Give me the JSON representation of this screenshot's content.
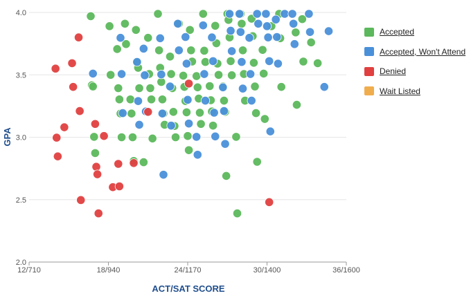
{
  "chart_data": {
    "type": "scatter",
    "xlabel": "ACT/SAT SCORE",
    "ylabel": "GPA",
    "x_ticks": [
      {
        "value": 12,
        "label": "12/710"
      },
      {
        "value": 18,
        "label": "18/940"
      },
      {
        "value": 24,
        "label": "24/1170"
      },
      {
        "value": 30,
        "label": "30/1400"
      },
      {
        "value": 36,
        "label": "36/1600"
      }
    ],
    "y_ticks": [
      "2.0",
      "2.5",
      "3.0",
      "3.5",
      "4.0"
    ],
    "xlim": [
      12,
      36
    ],
    "ylim": [
      2.0,
      4.0
    ],
    "grid": "horizontal",
    "legend_position": "right",
    "series": [
      {
        "name": "Accepted",
        "color": "#5cb85c",
        "points": [
          [
            17,
            3.96
          ],
          [
            17,
            3.42
          ],
          [
            17,
            3.4
          ],
          [
            17,
            3.01
          ],
          [
            17,
            2.87
          ],
          [
            18,
            3.9
          ],
          [
            18,
            3.5
          ],
          [
            19,
            3.9
          ],
          [
            19,
            3.75
          ],
          [
            19,
            3.7
          ],
          [
            19,
            3.4
          ],
          [
            19,
            3.3
          ],
          [
            19,
            3.2
          ],
          [
            19,
            3.0
          ],
          [
            20,
            3.85
          ],
          [
            20,
            3.6
          ],
          [
            20,
            3.55
          ],
          [
            20,
            3.4
          ],
          [
            20,
            3.3
          ],
          [
            20,
            3.2
          ],
          [
            20,
            3.0
          ],
          [
            20,
            2.8
          ],
          [
            21,
            3.8
          ],
          [
            21,
            3.5
          ],
          [
            21,
            3.4
          ],
          [
            21,
            3.3
          ],
          [
            21,
            3.0
          ],
          [
            21,
            2.8
          ],
          [
            22,
            4.0
          ],
          [
            22,
            3.7
          ],
          [
            22,
            3.55
          ],
          [
            22,
            3.45
          ],
          [
            22,
            3.3
          ],
          [
            22,
            3.2
          ],
          [
            22,
            3.1
          ],
          [
            23,
            3.9
          ],
          [
            23,
            3.65
          ],
          [
            23,
            3.5
          ],
          [
            23,
            3.4
          ],
          [
            23,
            3.2
          ],
          [
            23,
            3.1
          ],
          [
            23,
            3.0
          ],
          [
            24,
            3.85
          ],
          [
            24,
            3.7
          ],
          [
            24,
            3.6
          ],
          [
            24,
            3.5
          ],
          [
            24,
            3.4
          ],
          [
            24,
            3.3
          ],
          [
            24,
            3.2
          ],
          [
            24,
            3.0
          ],
          [
            24,
            2.9
          ],
          [
            25,
            4.0
          ],
          [
            25,
            3.7
          ],
          [
            25,
            3.6
          ],
          [
            25,
            3.5
          ],
          [
            25,
            3.4
          ],
          [
            25,
            3.3
          ],
          [
            25,
            3.2
          ],
          [
            25,
            3.1
          ],
          [
            26,
            3.9
          ],
          [
            26,
            3.75
          ],
          [
            26,
            3.6
          ],
          [
            26,
            3.5
          ],
          [
            26,
            3.4
          ],
          [
            26,
            3.3
          ],
          [
            26,
            3.2
          ],
          [
            26,
            3.1
          ],
          [
            27,
            4.0
          ],
          [
            27,
            3.95
          ],
          [
            27,
            3.8
          ],
          [
            27,
            3.6
          ],
          [
            27,
            3.5
          ],
          [
            27,
            3.4
          ],
          [
            27,
            3.3
          ],
          [
            27,
            3.2
          ],
          [
            27,
            2.7
          ],
          [
            28,
            4.0
          ],
          [
            28,
            3.9
          ],
          [
            28,
            3.7
          ],
          [
            28,
            3.5
          ],
          [
            28,
            3.3
          ],
          [
            28,
            3.0
          ],
          [
            28,
            2.4
          ],
          [
            29,
            3.95
          ],
          [
            29,
            3.8
          ],
          [
            29,
            3.6
          ],
          [
            29,
            3.4
          ],
          [
            29,
            3.2
          ],
          [
            29,
            2.8
          ],
          [
            30,
            3.9
          ],
          [
            30,
            3.7
          ],
          [
            30,
            3.5
          ],
          [
            30,
            3.15
          ],
          [
            31,
            4.0
          ],
          [
            31,
            3.8
          ],
          [
            31,
            3.4
          ],
          [
            32,
            3.85
          ],
          [
            32,
            3.26
          ],
          [
            33,
            3.75
          ],
          [
            33,
            3.95
          ],
          [
            33,
            3.6
          ],
          [
            34,
            3.6
          ]
        ]
      },
      {
        "name": "Accepted, Won't Attend",
        "color": "#4a90d9",
        "points": [
          [
            17,
            3.5
          ],
          [
            19,
            3.8
          ],
          [
            19,
            3.5
          ],
          [
            19,
            3.2
          ],
          [
            20,
            3.6
          ],
          [
            20,
            3.3
          ],
          [
            20,
            3.1
          ],
          [
            21,
            3.7
          ],
          [
            21,
            3.5
          ],
          [
            21,
            3.2
          ],
          [
            22,
            3.8
          ],
          [
            22,
            3.5
          ],
          [
            22,
            3.2
          ],
          [
            22,
            2.7
          ],
          [
            23,
            3.9
          ],
          [
            23,
            3.7
          ],
          [
            23,
            3.4
          ],
          [
            23,
            3.1
          ],
          [
            24,
            3.8
          ],
          [
            24,
            3.6
          ],
          [
            24,
            3.3
          ],
          [
            24,
            3.1
          ],
          [
            25,
            3.9
          ],
          [
            25,
            3.5
          ],
          [
            25,
            3.3
          ],
          [
            25,
            3.0
          ],
          [
            25,
            2.87
          ],
          [
            26,
            3.8
          ],
          [
            26,
            3.6
          ],
          [
            26,
            3.2
          ],
          [
            26,
            3.0
          ],
          [
            27,
            4.0
          ],
          [
            27,
            3.85
          ],
          [
            27,
            3.7
          ],
          [
            27,
            3.4
          ],
          [
            27,
            3.2
          ],
          [
            27,
            2.95
          ],
          [
            28,
            4.0
          ],
          [
            28,
            3.85
          ],
          [
            28,
            3.6
          ],
          [
            28,
            3.4
          ],
          [
            29,
            4.0
          ],
          [
            29,
            3.9
          ],
          [
            29,
            3.8
          ],
          [
            29,
            3.5
          ],
          [
            29,
            3.3
          ],
          [
            30,
            4.0
          ],
          [
            30,
            3.9
          ],
          [
            30,
            3.8
          ],
          [
            30,
            3.6
          ],
          [
            30,
            3.05
          ],
          [
            31,
            4.0
          ],
          [
            31,
            3.95
          ],
          [
            31,
            3.8
          ],
          [
            31,
            3.6
          ],
          [
            32,
            4.0
          ],
          [
            32,
            3.9
          ],
          [
            32,
            3.75
          ],
          [
            33,
            4.0
          ],
          [
            33,
            3.85
          ],
          [
            34,
            3.4
          ],
          [
            35,
            3.86
          ]
        ]
      },
      {
        "name": "Denied",
        "color": "#e04040",
        "points": [
          [
            14,
            3.54
          ],
          [
            14,
            3.0
          ],
          [
            14,
            2.84
          ],
          [
            15,
            3.6
          ],
          [
            15,
            3.4
          ],
          [
            15,
            3.09
          ],
          [
            16,
            3.8
          ],
          [
            16,
            3.2
          ],
          [
            16,
            2.5
          ],
          [
            17,
            3.1
          ],
          [
            17,
            2.77
          ],
          [
            17,
            2.7
          ],
          [
            17,
            2.4
          ],
          [
            18,
            2.6
          ],
          [
            18,
            3.0
          ],
          [
            19,
            2.79
          ],
          [
            19,
            2.6
          ],
          [
            20,
            2.8
          ],
          [
            21,
            3.2
          ],
          [
            24,
            3.44
          ],
          [
            30,
            2.48
          ]
        ]
      },
      {
        "name": "Wait Listed",
        "color": "#f0ad4e",
        "points": []
      }
    ]
  }
}
